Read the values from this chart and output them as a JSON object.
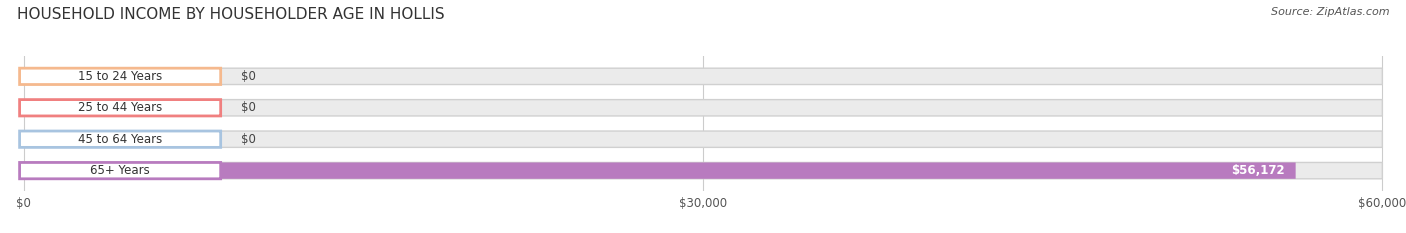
{
  "title": "HOUSEHOLD INCOME BY HOUSEHOLDER AGE IN HOLLIS",
  "source": "Source: ZipAtlas.com",
  "categories": [
    "15 to 24 Years",
    "25 to 44 Years",
    "45 to 64 Years",
    "65+ Years"
  ],
  "values": [
    0,
    0,
    0,
    56172
  ],
  "bar_colors": [
    "#f5b98e",
    "#f08080",
    "#a8c4e0",
    "#b87bbf"
  ],
  "track_color": "#ebebeb",
  "track_border_color": "#d0d0d0",
  "xlim_max": 60000,
  "background_color": "#ffffff",
  "bar_height": 0.52,
  "value_label_color": "#ffffff",
  "zero_label_color": "#444444",
  "title_fontsize": 11,
  "source_fontsize": 8,
  "label_fontsize": 8.5,
  "value_fontsize": 8.5,
  "xtick_fontsize": 8.5,
  "xticks": [
    0,
    30000,
    60000
  ],
  "xtick_labels": [
    "$0",
    "$30,000",
    "$60,000"
  ]
}
